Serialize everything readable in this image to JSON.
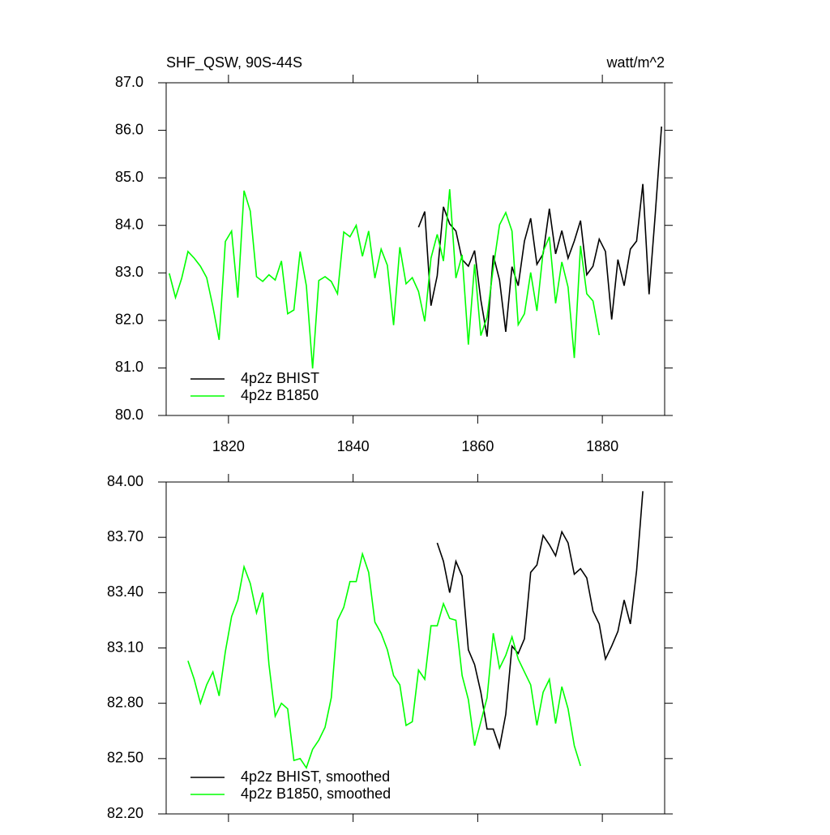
{
  "chart_data": [
    {
      "type": "line",
      "title": "SHF_QSW, 90S-44S",
      "units": "watt/m^2",
      "xlim": [
        1810,
        1890
      ],
      "xticks": [
        1820,
        1840,
        1860,
        1880
      ],
      "xtick_labels": true,
      "ylim": [
        80,
        87
      ],
      "yticks": [
        {
          "value": 80,
          "label": "80.0"
        },
        {
          "value": 81,
          "label": "81.0"
        },
        {
          "value": 82,
          "label": "82.0"
        },
        {
          "value": 83,
          "label": "83.0"
        },
        {
          "value": 84,
          "label": "84.0"
        },
        {
          "value": 85,
          "label": "85.0"
        },
        {
          "value": 86,
          "label": "86.0"
        },
        {
          "value": 87,
          "label": "87.0"
        }
      ],
      "legend": "lower left",
      "series": [
        {
          "name": "4p2z BHIST",
          "color": "#000000",
          "x": [
            1850.5,
            1851.5,
            1852.5,
            1853.5,
            1854.5,
            1855.5,
            1856.5,
            1857.5,
            1858.5,
            1859.5,
            1860.5,
            1861.5,
            1862.5,
            1863.5,
            1864.5,
            1865.5,
            1866.5,
            1867.5,
            1868.5,
            1869.5,
            1870.5,
            1871.5,
            1872.5,
            1873.5,
            1874.5,
            1875.5,
            1876.5,
            1877.5,
            1878.5,
            1879.5,
            1880.5,
            1881.5,
            1882.5,
            1883.5,
            1884.5,
            1885.5,
            1886.5,
            1887.5,
            1888.5,
            1889.5
          ],
          "values": [
            83.96,
            84.29,
            82.31,
            82.94,
            84.39,
            84.03,
            83.88,
            83.28,
            83.14,
            83.47,
            82.43,
            81.66,
            83.37,
            82.85,
            81.76,
            83.13,
            82.73,
            83.67,
            84.15,
            83.18,
            83.4,
            84.35,
            83.4,
            83.89,
            83.31,
            83.67,
            84.1,
            82.96,
            83.14,
            83.71,
            83.45,
            82.02,
            83.28,
            82.73,
            83.5,
            83.67,
            84.87,
            82.55,
            84.25,
            86.08
          ]
        },
        {
          "name": "4p2z B1850",
          "color": "#00ff00",
          "x": [
            1810.5,
            1811.5,
            1812.5,
            1813.5,
            1814.5,
            1815.5,
            1816.5,
            1817.5,
            1818.5,
            1819.5,
            1820.5,
            1821.5,
            1822.5,
            1823.5,
            1824.5,
            1825.5,
            1826.5,
            1827.5,
            1828.5,
            1829.5,
            1830.5,
            1831.5,
            1832.5,
            1833.5,
            1834.5,
            1835.5,
            1836.5,
            1837.5,
            1838.5,
            1839.5,
            1840.5,
            1841.5,
            1842.5,
            1843.5,
            1844.5,
            1845.5,
            1846.5,
            1847.5,
            1848.5,
            1849.5,
            1850.5,
            1851.5,
            1852.5,
            1853.5,
            1854.5,
            1855.5,
            1856.5,
            1857.5,
            1858.5,
            1859.5,
            1860.5,
            1861.5,
            1862.5,
            1863.5,
            1864.5,
            1865.5,
            1866.5,
            1867.5,
            1868.5,
            1869.5,
            1870.5,
            1871.5,
            1872.5,
            1873.5,
            1874.5,
            1875.5,
            1876.5,
            1877.5,
            1878.5,
            1879.5
          ],
          "values": [
            82.99,
            82.48,
            82.89,
            83.45,
            83.31,
            83.14,
            82.9,
            82.29,
            81.59,
            83.66,
            83.88,
            82.48,
            84.73,
            84.3,
            82.92,
            82.82,
            82.96,
            82.85,
            83.25,
            82.14,
            82.22,
            83.45,
            82.73,
            80.99,
            82.84,
            82.92,
            82.82,
            82.56,
            83.86,
            83.76,
            84.0,
            83.35,
            83.88,
            82.89,
            83.5,
            83.16,
            81.9,
            83.54,
            82.77,
            82.9,
            82.61,
            81.98,
            83.31,
            83.81,
            83.25,
            84.76,
            82.89,
            83.38,
            81.49,
            83.18,
            81.68,
            82.07,
            83.11,
            84.01,
            84.27,
            83.88,
            81.91,
            82.14,
            83.01,
            82.2,
            83.45,
            83.76,
            82.36,
            83.23,
            82.7,
            81.21,
            83.57,
            82.56,
            82.41,
            81.69
          ]
        }
      ]
    },
    {
      "type": "line",
      "xlim": [
        1810,
        1890
      ],
      "xticks": [
        1820,
        1840,
        1860,
        1880
      ],
      "xtick_labels": false,
      "ylim": [
        82.2,
        84
      ],
      "yticks": [
        {
          "value": 82.2,
          "label": "82.20"
        },
        {
          "value": 82.5,
          "label": "82.50"
        },
        {
          "value": 82.8,
          "label": "82.80"
        },
        {
          "value": 83.1,
          "label": "83.10"
        },
        {
          "value": 83.4,
          "label": "83.40"
        },
        {
          "value": 83.7,
          "label": "83.70"
        },
        {
          "value": 84,
          "label": "84.00"
        }
      ],
      "legend": "lower left",
      "series": [
        {
          "name": "4p2z BHIST, smoothed",
          "color": "#000000",
          "x": [
            1853.5,
            1854.5,
            1855.5,
            1856.5,
            1857.5,
            1858.5,
            1859.5,
            1860.5,
            1861.5,
            1862.5,
            1863.5,
            1864.5,
            1865.5,
            1866.5,
            1867.5,
            1868.5,
            1869.5,
            1870.5,
            1871.5,
            1872.5,
            1873.5,
            1874.5,
            1875.5,
            1876.5,
            1877.5,
            1878.5,
            1879.5,
            1880.5,
            1881.5,
            1882.5,
            1883.5,
            1884.5,
            1885.5,
            1886.5
          ],
          "values": [
            83.67,
            83.57,
            83.4,
            83.57,
            83.49,
            83.09,
            83.01,
            82.86,
            82.66,
            82.66,
            82.56,
            82.74,
            83.11,
            83.07,
            83.15,
            83.51,
            83.55,
            83.71,
            83.66,
            83.6,
            83.73,
            83.67,
            83.5,
            83.53,
            83.48,
            83.3,
            83.23,
            83.04,
            83.11,
            83.19,
            83.36,
            83.23,
            83.52,
            83.95
          ]
        },
        {
          "name": "4p2z B1850, smoothed",
          "color": "#00ff00",
          "x": [
            1813.5,
            1814.5,
            1815.5,
            1816.5,
            1817.5,
            1818.5,
            1819.5,
            1820.5,
            1821.5,
            1822.5,
            1823.5,
            1824.5,
            1825.5,
            1826.5,
            1827.5,
            1828.5,
            1829.5,
            1830.5,
            1831.5,
            1832.5,
            1833.5,
            1834.5,
            1835.5,
            1836.5,
            1837.5,
            1838.5,
            1839.5,
            1840.5,
            1841.5,
            1842.5,
            1843.5,
            1844.5,
            1845.5,
            1846.5,
            1847.5,
            1848.5,
            1849.5,
            1850.5,
            1851.5,
            1852.5,
            1853.5,
            1854.5,
            1855.5,
            1856.5,
            1857.5,
            1858.5,
            1859.5,
            1860.5,
            1861.5,
            1862.5,
            1863.5,
            1864.5,
            1865.5,
            1866.5,
            1867.5,
            1868.5,
            1869.5,
            1870.5,
            1871.5,
            1872.5,
            1873.5,
            1874.5,
            1875.5,
            1876.5
          ],
          "values": [
            83.03,
            82.93,
            82.8,
            82.9,
            82.97,
            82.84,
            83.08,
            83.27,
            83.36,
            83.54,
            83.45,
            83.29,
            83.4,
            83.01,
            82.73,
            82.8,
            82.77,
            82.49,
            82.5,
            82.45,
            82.55,
            82.6,
            82.67,
            82.83,
            83.25,
            83.32,
            83.46,
            83.46,
            83.61,
            83.51,
            83.24,
            83.18,
            83.09,
            82.95,
            82.9,
            82.68,
            82.7,
            82.98,
            82.93,
            83.22,
            83.22,
            83.34,
            83.26,
            83.25,
            82.95,
            82.82,
            82.57,
            82.7,
            82.83,
            83.18,
            82.99,
            83.06,
            83.16,
            83.04,
            82.97,
            82.9,
            82.68,
            82.86,
            82.93,
            82.69,
            82.89,
            82.77,
            82.57,
            82.46
          ]
        }
      ]
    }
  ]
}
